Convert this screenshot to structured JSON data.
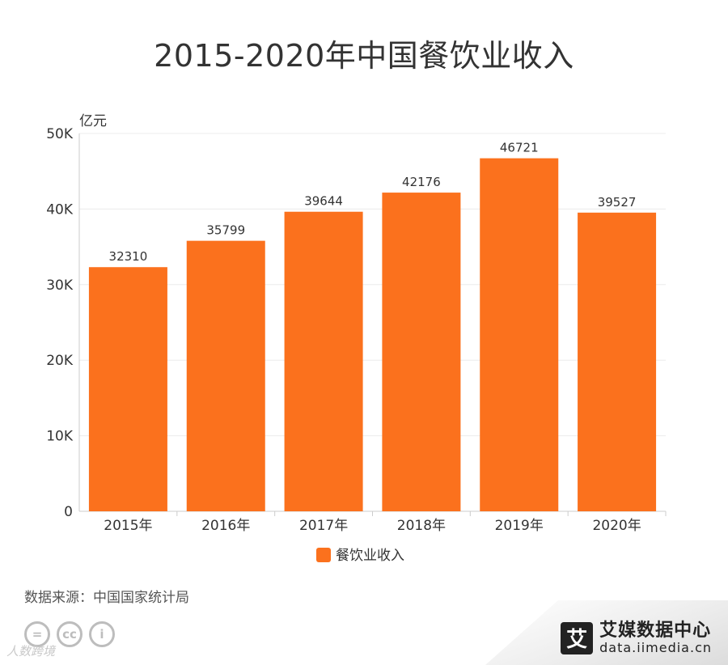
{
  "chart_data": {
    "type": "bar",
    "title": "2015-2020年中国餐饮业收入",
    "ylabel": "亿元",
    "categories": [
      "2015年",
      "2016年",
      "2017年",
      "2018年",
      "2019年",
      "2020年"
    ],
    "series": [
      {
        "name": "餐饮业收入",
        "values": [
          32310,
          35799,
          39644,
          42176,
          46721,
          39527
        ],
        "color": "#fb711d"
      }
    ],
    "ylim": [
      0,
      50000
    ],
    "yticks": [
      0,
      10000,
      20000,
      30000,
      40000,
      50000
    ],
    "ytick_labels": [
      "0",
      "10K",
      "20K",
      "30K",
      "40K",
      "50K"
    ],
    "grid": true,
    "legend": "bottom-center"
  },
  "source": "数据来源：中国国家统计局",
  "watermark": "人数跨境",
  "brand": {
    "name": "艾媒数据中心",
    "url": "data.iimedia.cn",
    "logo_char": "艾"
  },
  "cc_icons": [
    "=",
    "cc",
    "i"
  ]
}
